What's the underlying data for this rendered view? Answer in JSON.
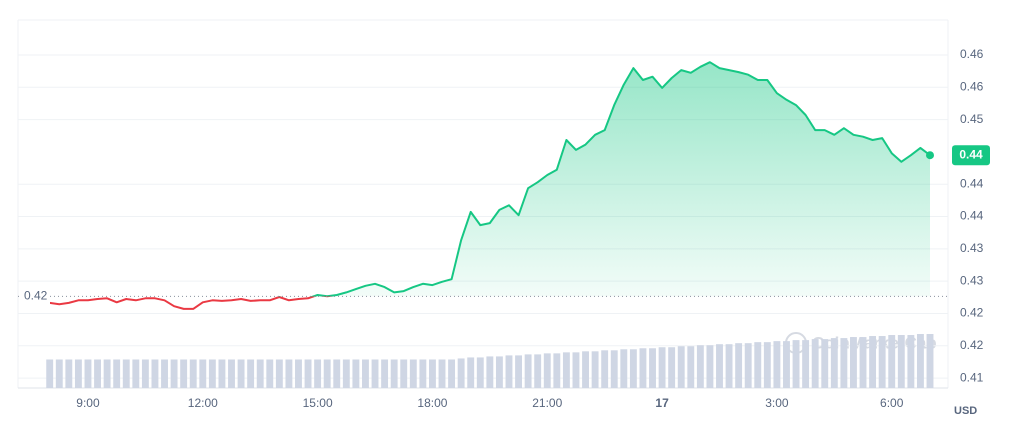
{
  "chart_data": {
    "type": "line",
    "categories": [
      null,
      null,
      null,
      null,
      "9:00",
      null,
      null,
      null,
      null,
      null,
      null,
      null,
      null,
      null,
      null,
      null,
      "12:00",
      null,
      null,
      null,
      null,
      null,
      null,
      null,
      null,
      null,
      null,
      null,
      "15:00",
      null,
      null,
      null,
      null,
      null,
      null,
      null,
      null,
      null,
      null,
      null,
      "18:00",
      null,
      null,
      null,
      null,
      null,
      null,
      null,
      null,
      null,
      null,
      null,
      "21:00",
      null,
      null,
      null,
      null,
      null,
      null,
      null,
      null,
      null,
      null,
      null,
      "17",
      null,
      null,
      null,
      null,
      null,
      null,
      null,
      null,
      null,
      null,
      null,
      "3:00",
      null,
      null,
      null,
      null,
      null,
      null,
      null,
      null,
      null,
      null,
      null,
      "6:00",
      null,
      null,
      null,
      null
    ],
    "series": [
      {
        "values": [
          0.4224,
          0.4222,
          0.4224,
          0.4228,
          0.4228,
          0.423,
          0.4231,
          0.4225,
          0.423,
          0.4228,
          0.4231,
          0.4231,
          0.4228,
          0.4219,
          0.4215,
          0.4215,
          0.4225,
          0.4228,
          0.4227,
          0.4228,
          0.423,
          0.4227,
          0.4228,
          0.4228,
          0.4233,
          0.4228,
          0.423,
          0.4231,
          0.4236,
          0.4234,
          0.4236,
          0.424,
          0.4245,
          0.425,
          0.4253,
          0.4248,
          0.424,
          0.4242,
          0.4248,
          0.4253,
          0.4251,
          0.4256,
          0.426,
          0.4319,
          0.4362,
          0.4342,
          0.4345,
          0.4365,
          0.4372,
          0.4357,
          0.4398,
          0.4407,
          0.4418,
          0.4426,
          0.4471,
          0.4456,
          0.4464,
          0.4479,
          0.4486,
          0.4524,
          0.4555,
          0.458,
          0.4562,
          0.4567,
          0.455,
          0.4565,
          0.4577,
          0.4573,
          0.4582,
          0.4589,
          0.458,
          0.4577,
          0.4574,
          0.457,
          0.4562,
          0.4562,
          0.4542,
          0.4532,
          0.4524,
          0.4509,
          0.4486,
          0.4486,
          0.4479,
          0.4489,
          0.4479,
          0.4476,
          0.4471,
          0.4474,
          0.4451,
          0.4438,
          0.4448,
          0.4459,
          0.4448
        ]
      }
    ],
    "volume": {
      "color": "#cfd6e4",
      "values": [
        28,
        28,
        28,
        28,
        28,
        28,
        28,
        28,
        28,
        28,
        28,
        28,
        28,
        28,
        28,
        28,
        28,
        28,
        28,
        28,
        28,
        28,
        28,
        28,
        28,
        28,
        28,
        28,
        28,
        28,
        28,
        28,
        28,
        28,
        28,
        28,
        28,
        28,
        28,
        28,
        28,
        28,
        28,
        29,
        30,
        30,
        31,
        31,
        32,
        32,
        33,
        33,
        34,
        34,
        35,
        35,
        36,
        36,
        37,
        37,
        38,
        38,
        39,
        39,
        40,
        40,
        41,
        41,
        42,
        42,
        43,
        43,
        44,
        44,
        45,
        45,
        46,
        46,
        47,
        47,
        48,
        48,
        49,
        49,
        50,
        50,
        51,
        51,
        52,
        52,
        52,
        53,
        53
      ]
    },
    "up_color": "#16c784",
    "down_color": "#ea3943",
    "baseline": {
      "value": 0.4234,
      "label": "0.42"
    },
    "current": {
      "value": 0.4448,
      "label": "0.44"
    },
    "ylim": [
      0.4095,
      0.4653
    ],
    "yticks": [
      {
        "value": 0.411,
        "label": "0.41"
      },
      {
        "value": 0.4159,
        "label": "0.42"
      },
      {
        "value": 0.4208,
        "label": "0.42"
      },
      {
        "value": 0.4257,
        "label": "0.43"
      },
      {
        "value": 0.4306,
        "label": "0.43"
      },
      {
        "value": 0.4355,
        "label": "0.44"
      },
      {
        "value": 0.4404,
        "label": "0.44"
      },
      {
        "value": 0.4502,
        "label": "0.45"
      },
      {
        "value": 0.4551,
        "label": "0.46"
      },
      0.46
    ],
    "grid": true,
    "currency": "USD",
    "watermark": "CoinMarketCap"
  }
}
